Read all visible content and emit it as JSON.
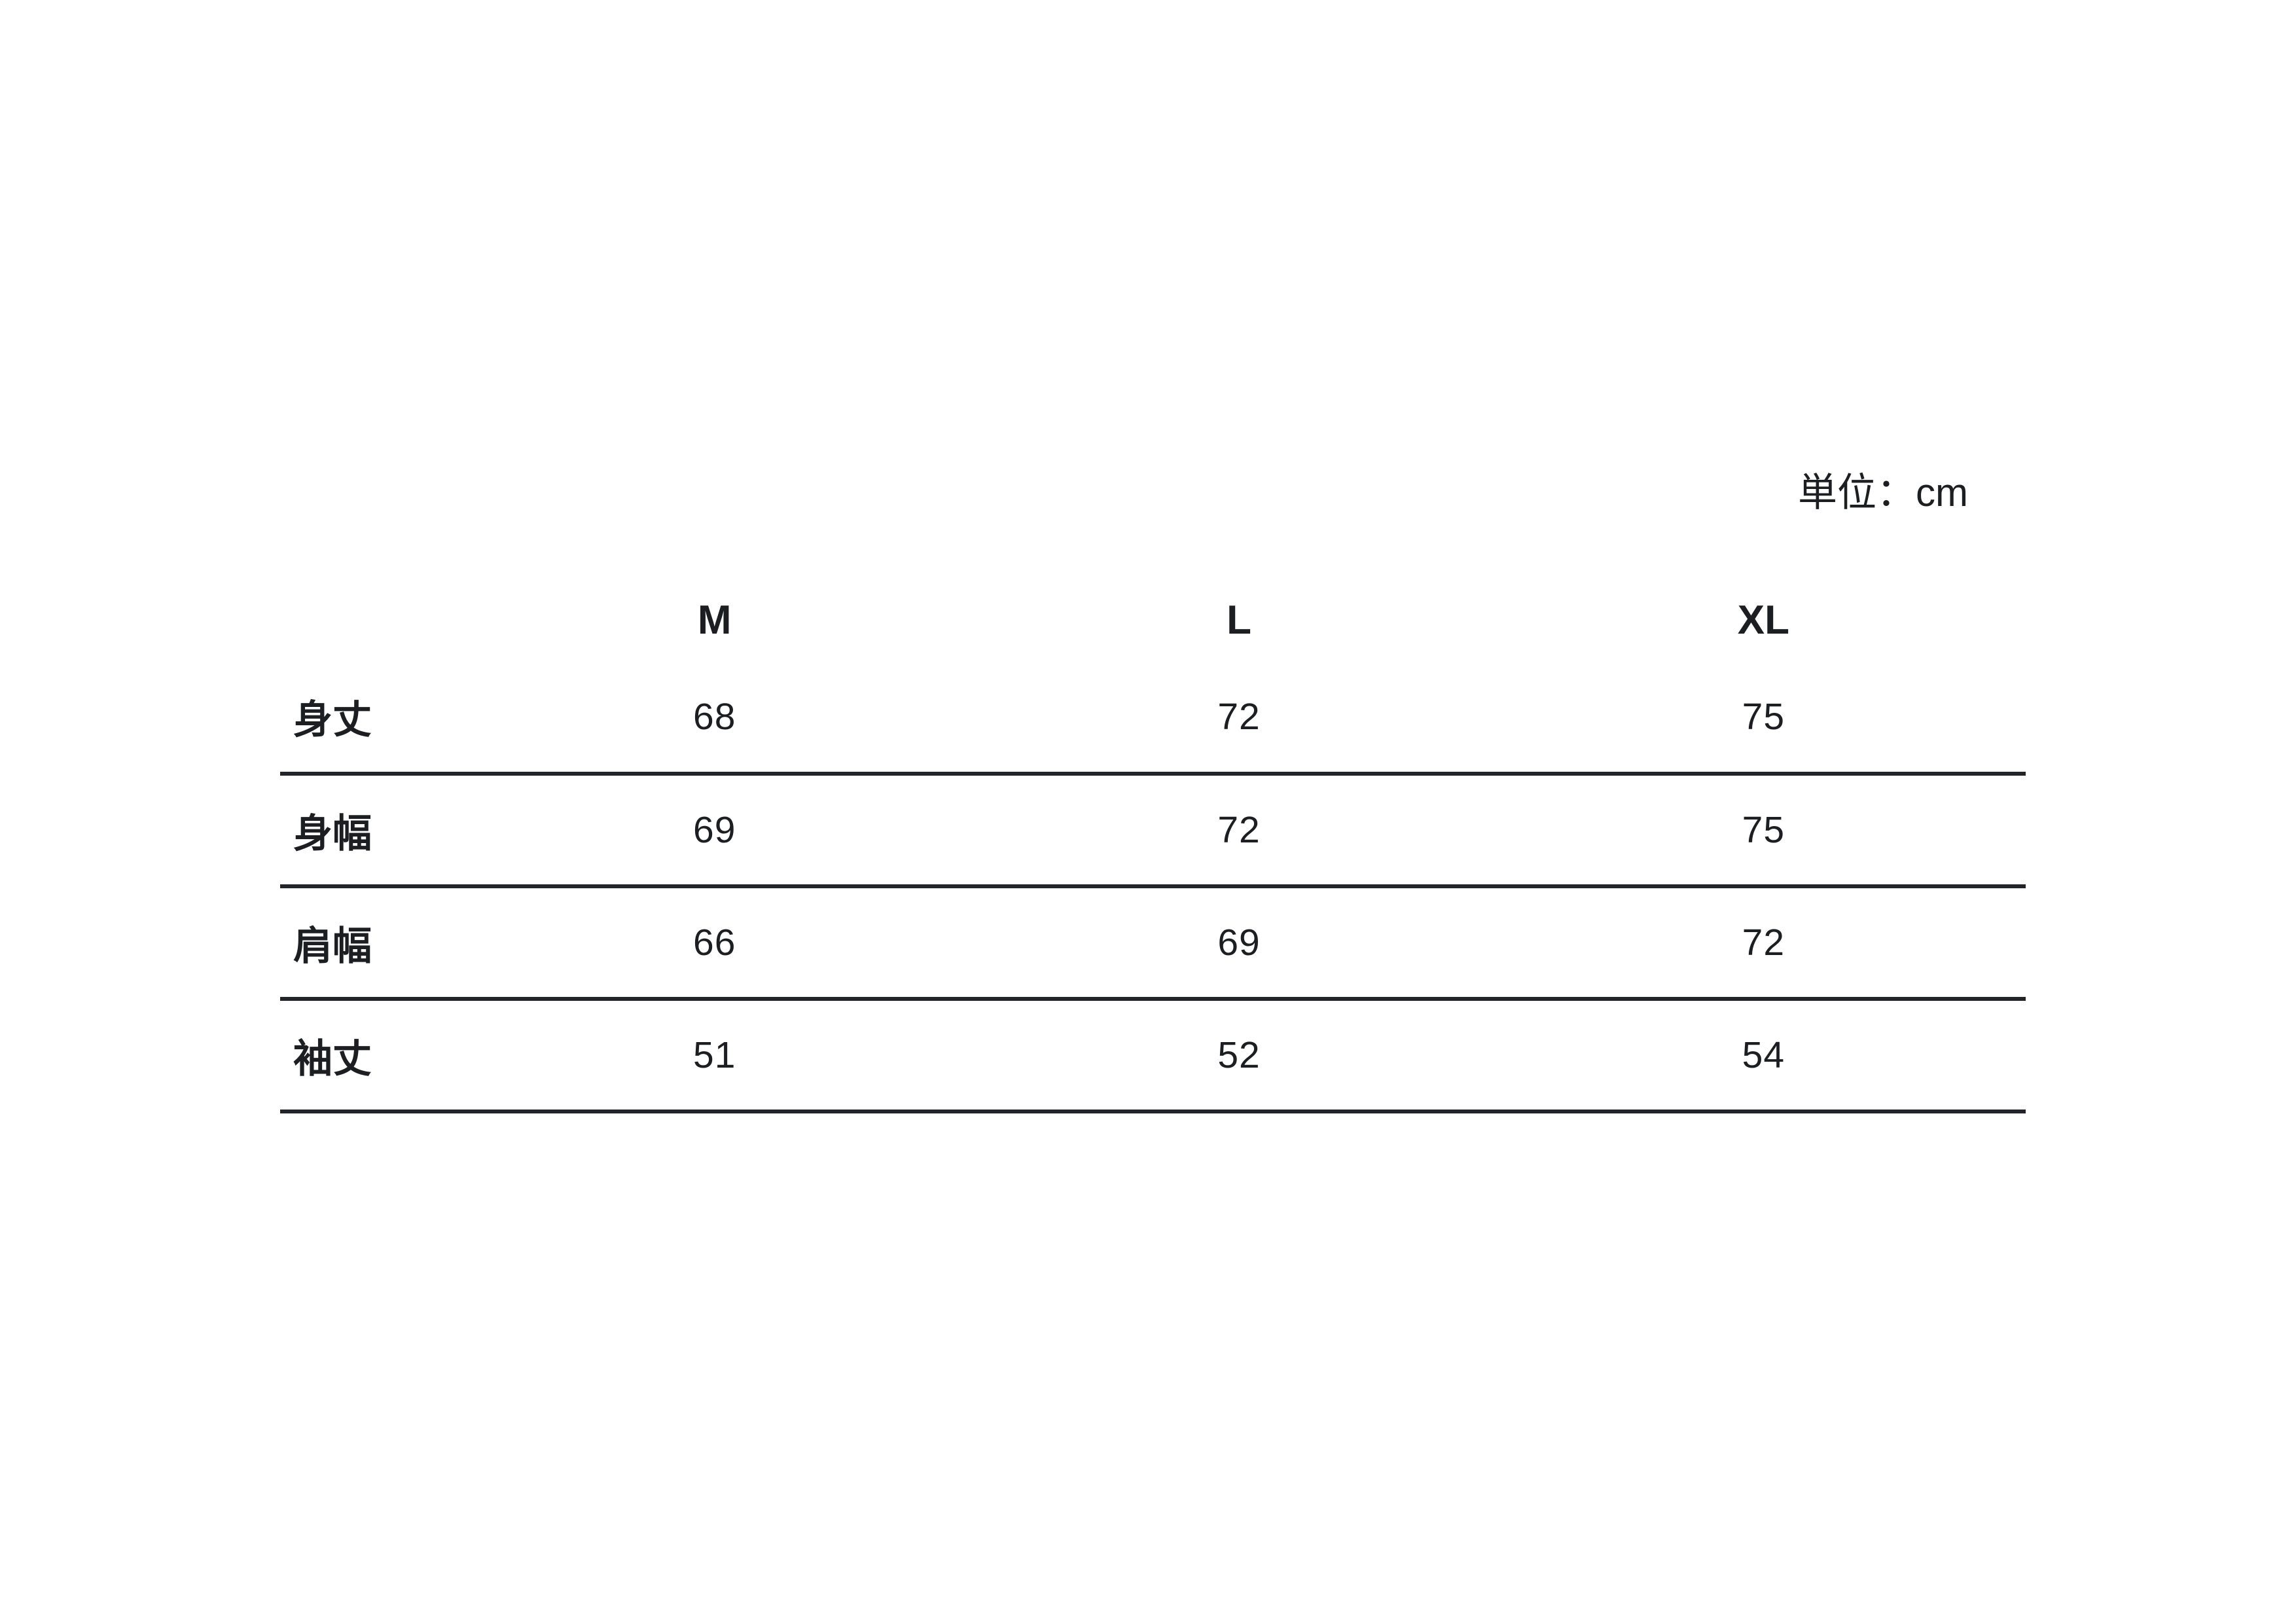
{
  "unit_label": "単位：cm",
  "colors": {
    "background": "#ffffff",
    "text": "#1c1e21",
    "line": "#212529"
  },
  "chart_data": {
    "type": "table",
    "title": "",
    "unit_label": "単位：cm",
    "columns": [
      "M",
      "L",
      "XL"
    ],
    "row_labels": [
      "身丈",
      "身幅",
      "肩幅",
      "袖丈"
    ],
    "rows": [
      [
        "68",
        "72",
        "75"
      ],
      [
        "69",
        "72",
        "75"
      ],
      [
        "66",
        "69",
        "72"
      ],
      [
        "51",
        "52",
        "54"
      ]
    ]
  }
}
